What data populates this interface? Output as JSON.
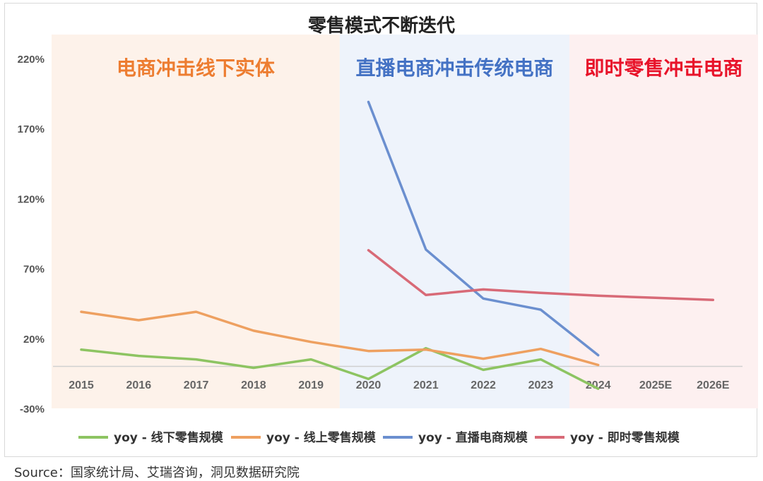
{
  "chart_data": {
    "type": "line",
    "title": "零售模式不断迭代",
    "categories": [
      "2015",
      "2016",
      "2017",
      "2018",
      "2019",
      "2020",
      "2021",
      "2022",
      "2023",
      "2024",
      "2025E",
      "2026E"
    ],
    "ylim": [
      -30,
      220
    ],
    "yticks": [
      "220%",
      "170%",
      "120%",
      "70%",
      "20%",
      "-30%"
    ],
    "ytick_values": [
      220,
      170,
      120,
      70,
      20,
      -30
    ],
    "grid": false,
    "legend_position": "bottom",
    "zones": [
      {
        "label": "电商冲击线下实体",
        "from": "2015",
        "to": "2019",
        "color": "#fdf2ea",
        "text_color": "#ed7d31"
      },
      {
        "label": "直播电商冲击传统电商",
        "from": "2020",
        "to": "2023",
        "color": "#eef3fb",
        "text_color": "#4472c4"
      },
      {
        "label": "即时零售冲击电商",
        "from": "2024",
        "to": "2026E",
        "color": "#fdf0f0",
        "text_color": "#e8132a"
      }
    ],
    "series": [
      {
        "name": "yoy - 线下零售规模",
        "color": "#8dc462",
        "values": [
          12,
          7.5,
          5,
          -1,
          5,
          -9,
          13,
          -2.5,
          5,
          -16,
          null,
          null
        ]
      },
      {
        "name": "yoy - 线上零售规模",
        "color": "#eea060",
        "values": [
          39,
          33,
          39,
          25.5,
          17.5,
          11,
          12,
          5.5,
          12.5,
          1,
          null,
          null
        ]
      },
      {
        "name": "yoy - 直播电商规模",
        "color": "#6b8fcf",
        "values": [
          null,
          null,
          null,
          null,
          null,
          189,
          83.5,
          48.5,
          40.5,
          8,
          null,
          null
        ]
      },
      {
        "name": "yoy - 即时零售规模",
        "color": "#d86a77",
        "values": [
          null,
          null,
          null,
          null,
          null,
          83,
          51,
          55,
          52.5,
          50.5,
          49,
          47.5
        ]
      }
    ]
  },
  "source": "Source：国家统计局、艾瑞咨询，洞见数据研究院"
}
